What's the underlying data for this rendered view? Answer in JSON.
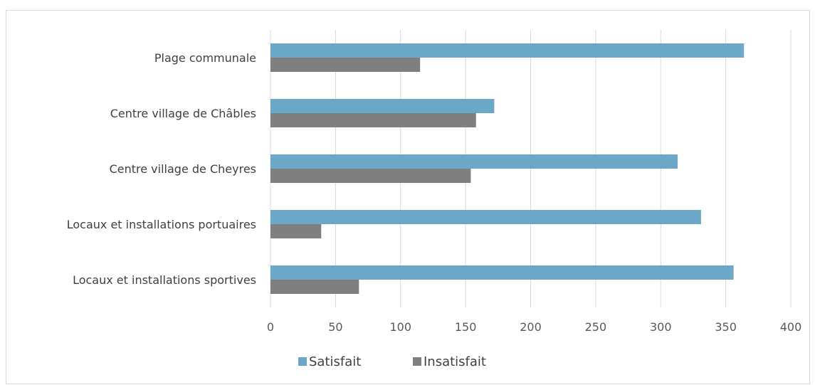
{
  "chart_data": {
    "type": "bar",
    "orientation": "horizontal",
    "categories": [
      "Plage communale",
      "Centre village de Châbles",
      "Centre village de Cheyres",
      "Locaux et installations portuaires",
      "Locaux et installations sportives"
    ],
    "series": [
      {
        "name": "Satisfait",
        "values": [
          364,
          172,
          313,
          331,
          356
        ],
        "color": "#6ba7c6"
      },
      {
        "name": "Insatisfait",
        "values": [
          115,
          158,
          154,
          39,
          68
        ],
        "color": "#7f7f7f"
      }
    ],
    "xlim": [
      0,
      400
    ],
    "x_ticks": [
      0,
      50,
      100,
      150,
      200,
      250,
      300,
      350,
      400
    ],
    "grid": "vertical",
    "legend_position": "bottom",
    "title": "",
    "xlabel": "",
    "ylabel": ""
  },
  "colors": {
    "grid": "#d9d9d9",
    "frame": "#d9d9d9"
  }
}
